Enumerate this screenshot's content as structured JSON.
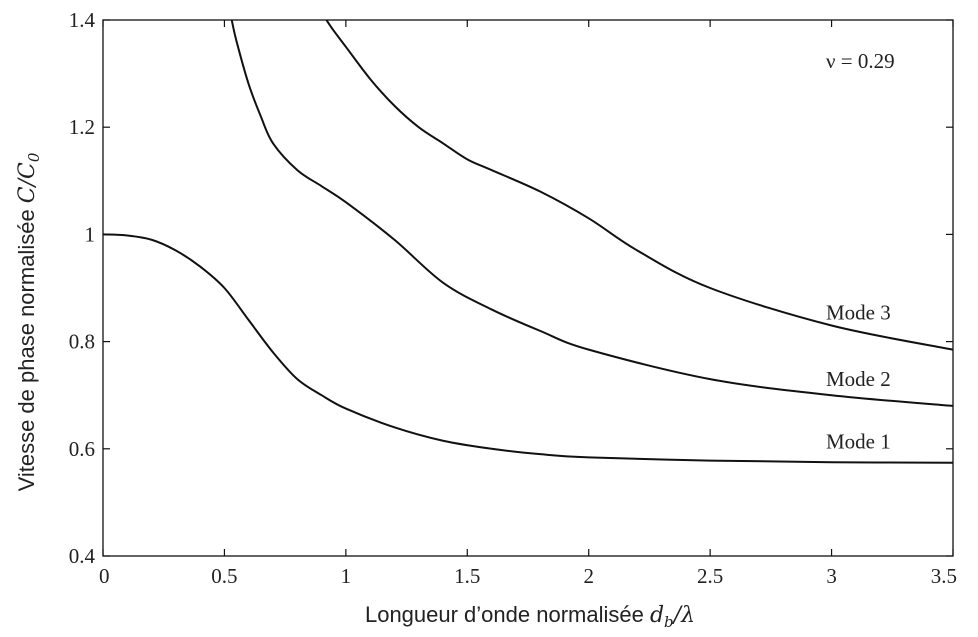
{
  "chart_data": {
    "type": "line",
    "title": "",
    "xlabel": "Longueur d’onde normalisée ",
    "xlabel_math": "d_b / λ",
    "ylabel": "Vitesse de phase normalisée ",
    "ylabel_math": "C / C_0",
    "xlim": [
      0,
      3.5
    ],
    "ylim": [
      0.4,
      1.4
    ],
    "xticks": [
      0,
      0.5,
      1,
      1.5,
      2,
      2.5,
      3,
      3.5
    ],
    "xtick_labels": [
      "0",
      "0.5",
      "1",
      "1.5",
      "2",
      "2.5",
      "3",
      "3.5"
    ],
    "yticks": [
      0.4,
      0.6,
      0.8,
      1.0,
      1.2,
      1.4
    ],
    "ytick_labels": [
      "0.4",
      "0.6",
      "0.8",
      "1",
      "1.2",
      "1.4"
    ],
    "grid": false,
    "legend": "none",
    "annotation": "ν = 0.29",
    "series": [
      {
        "name": "Mode 1",
        "x": [
          0,
          0.1,
          0.2,
          0.3,
          0.4,
          0.5,
          0.6,
          0.7,
          0.8,
          0.9,
          1.0,
          1.2,
          1.4,
          1.6,
          1.8,
          2.0,
          2.5,
          3.0,
          3.5
        ],
        "y": [
          1.0,
          0.998,
          0.99,
          0.97,
          0.94,
          0.9,
          0.84,
          0.78,
          0.73,
          0.7,
          0.675,
          0.64,
          0.615,
          0.6,
          0.59,
          0.584,
          0.578,
          0.575,
          0.574
        ]
      },
      {
        "name": "Mode 2",
        "x": [
          0.53,
          0.55,
          0.6,
          0.65,
          0.7,
          0.8,
          0.9,
          1.0,
          1.2,
          1.4,
          1.6,
          1.8,
          2.0,
          2.5,
          3.0,
          3.5
        ],
        "y": [
          1.4,
          1.36,
          1.28,
          1.22,
          1.17,
          1.12,
          1.09,
          1.06,
          0.99,
          0.91,
          0.86,
          0.82,
          0.785,
          0.73,
          0.7,
          0.68
        ]
      },
      {
        "name": "Mode 3",
        "x": [
          0.92,
          0.95,
          1.0,
          1.1,
          1.2,
          1.3,
          1.4,
          1.5,
          1.6,
          1.8,
          2.0,
          2.2,
          2.5,
          3.0,
          3.5
        ],
        "y": [
          1.4,
          1.38,
          1.35,
          1.29,
          1.24,
          1.2,
          1.17,
          1.14,
          1.12,
          1.08,
          1.03,
          0.97,
          0.9,
          0.83,
          0.785
        ]
      }
    ]
  }
}
